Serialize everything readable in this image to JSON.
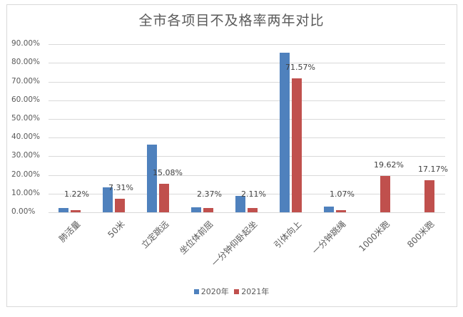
{
  "chart_data": {
    "type": "bar",
    "title": "全市各项目不及格率两年对比",
    "xlabel": "",
    "ylabel": "",
    "ylim": [
      0,
      0.9
    ],
    "yticks": [
      "0.00%",
      "10.00%",
      "20.00%",
      "30.00%",
      "40.00%",
      "50.00%",
      "60.00%",
      "70.00%",
      "80.00%",
      "90.00%"
    ],
    "grid": true,
    "legend_position": "bottom",
    "categories": [
      "肺活量",
      "50米",
      "立定跳远",
      "坐位体前屈",
      "一分钟仰卧起坐",
      "引体向上",
      "一分钟跳绳",
      "1000米跑",
      "800米跑"
    ],
    "series": [
      {
        "name": "2020年",
        "color": "#4f81bd",
        "values": [
          0.023,
          0.134,
          0.363,
          0.028,
          0.088,
          0.855,
          0.031,
          null,
          null
        ],
        "data_labels": [
          "",
          "",
          "",
          "",
          "",
          "",
          "",
          "",
          ""
        ]
      },
      {
        "name": "2021年",
        "color": "#c0504d",
        "values": [
          0.0122,
          0.0731,
          0.1508,
          0.0237,
          0.0211,
          0.7157,
          0.0107,
          0.1962,
          0.1717
        ],
        "data_labels": [
          "1.22%",
          "7.31%",
          "15.08%",
          "2.37%",
          "2.11%",
          "71.57%",
          "1.07%",
          "19.62%",
          "17.17%"
        ]
      }
    ]
  },
  "legend": {
    "items": [
      {
        "label": "2020年",
        "color": "#4f81bd"
      },
      {
        "label": "2021年",
        "color": "#c0504d"
      }
    ]
  }
}
